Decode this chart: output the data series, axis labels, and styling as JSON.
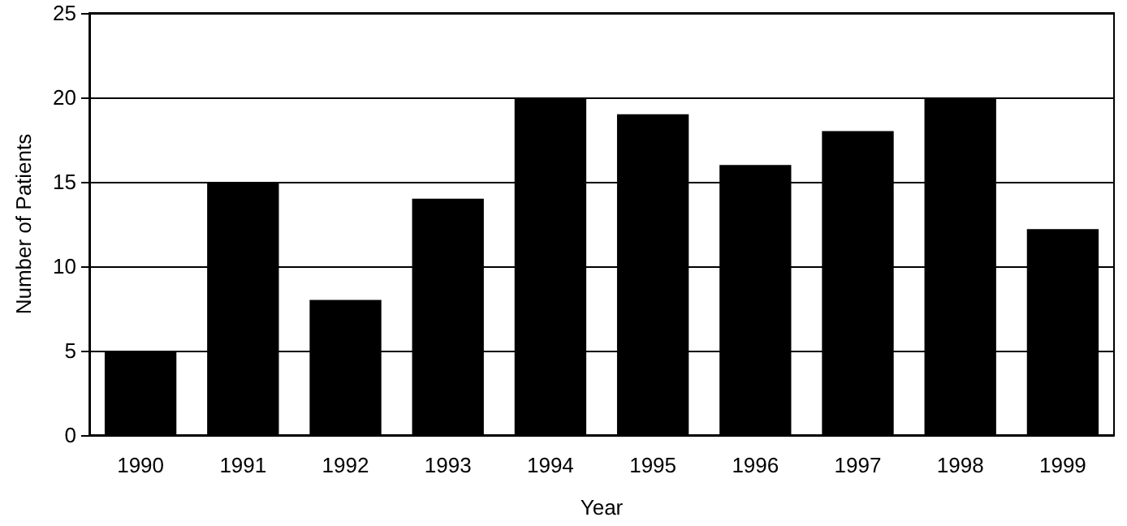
{
  "chart_data": {
    "type": "bar",
    "xlabel": "Year",
    "ylabel": "Number of Patients",
    "categories": [
      "1990",
      "1991",
      "1992",
      "1993",
      "1994",
      "1995",
      "1996",
      "1997",
      "1998",
      "1999"
    ],
    "values": [
      5,
      15,
      8,
      14,
      20,
      19,
      16,
      18,
      20,
      12.2
    ],
    "color": "#000000",
    "ylim": [
      0,
      25
    ],
    "yticks": [
      0,
      5,
      10,
      15,
      20,
      25
    ],
    "grid": "y"
  }
}
